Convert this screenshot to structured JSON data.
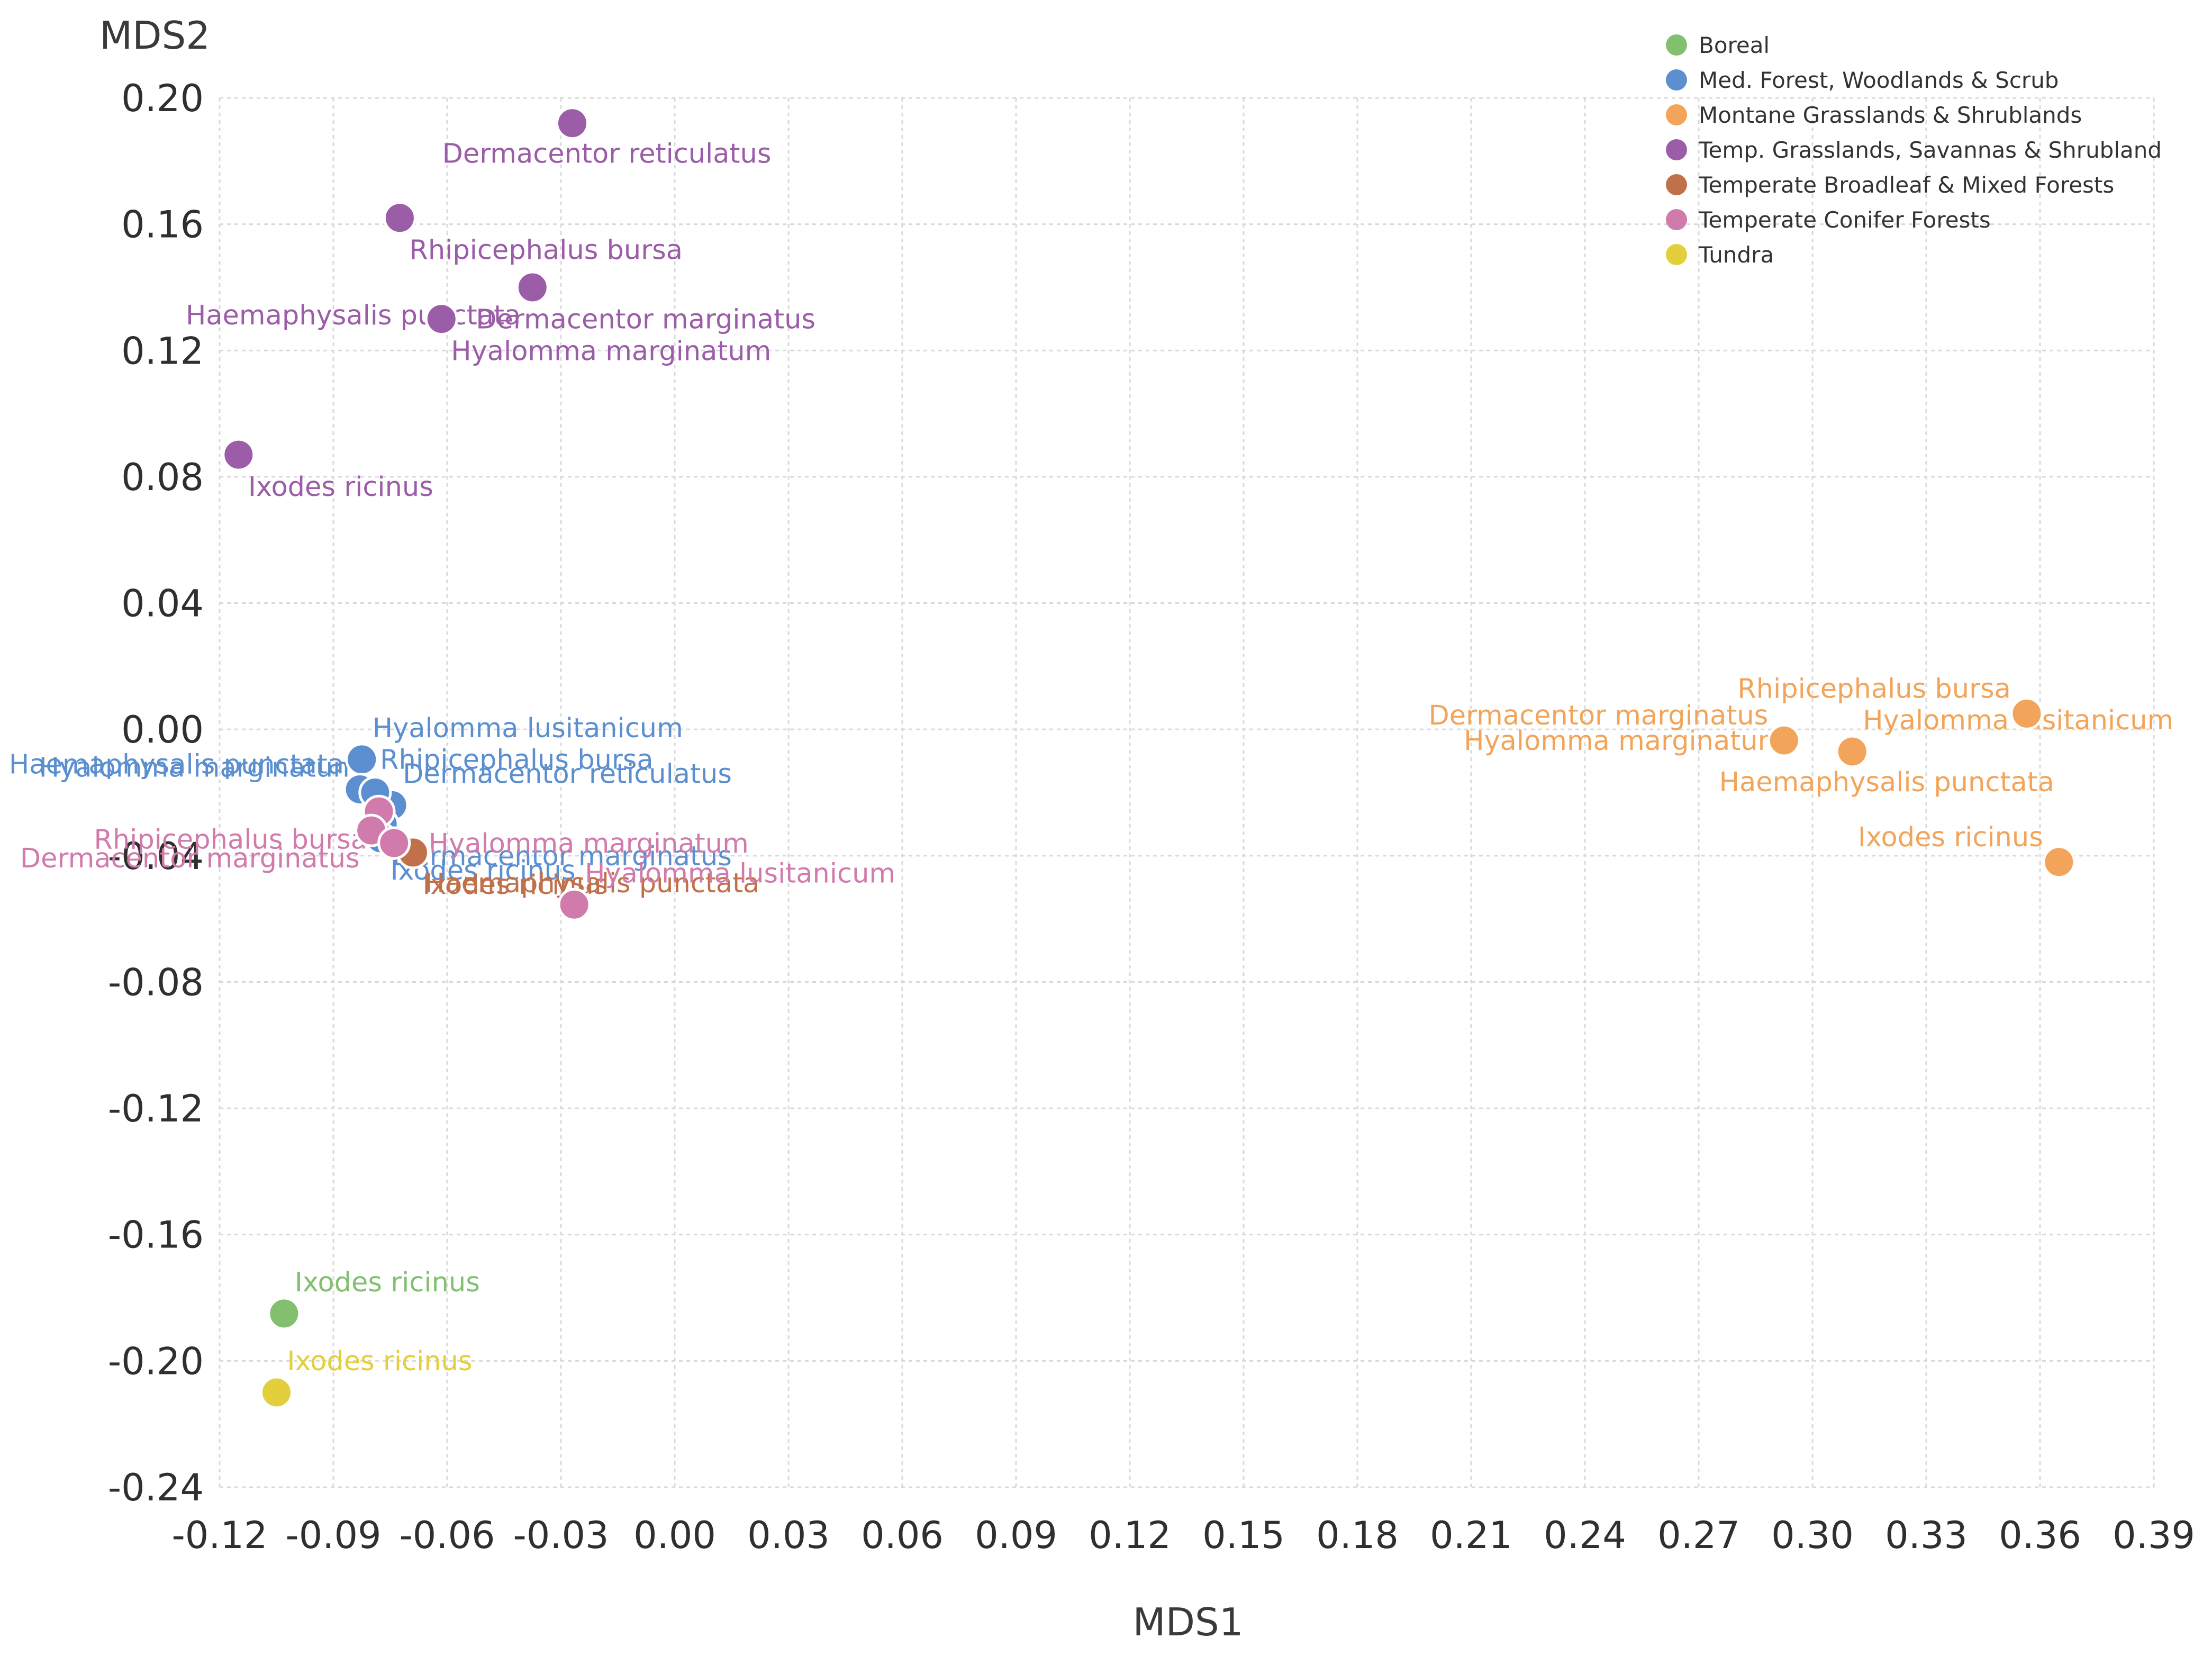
{
  "chart_data": {
    "type": "scatter",
    "title": "",
    "xlabel": "MDS1",
    "ylabel": "MDS2",
    "xlim": [
      -0.12,
      0.39
    ],
    "ylim": [
      -0.24,
      0.2
    ],
    "xticks": [
      -0.12,
      -0.09,
      -0.06,
      -0.03,
      0.0,
      0.03,
      0.06,
      0.09,
      0.12,
      0.15,
      0.18,
      0.21,
      0.24,
      0.27,
      0.3,
      0.33,
      0.36,
      0.39
    ],
    "xtick_labels": [
      "-0.12",
      "-0.09",
      "-0.06",
      "-0.03",
      "0.00",
      "0.03",
      "0.06",
      "0.09",
      "0.12",
      "0.15",
      "0.18",
      "0.21",
      "0.24",
      "0.27",
      "0.30",
      "0.33",
      "0.36",
      "0.39"
    ],
    "yticks": [
      0.2,
      0.16,
      0.12,
      0.08,
      0.04,
      0.0,
      -0.04,
      -0.08,
      -0.12,
      -0.16,
      -0.2,
      -0.24
    ],
    "ytick_labels": [
      "0.20",
      "0.16",
      "0.12",
      "0.08",
      "0.04",
      "0.00",
      "-0.04",
      "-0.08",
      "-0.12",
      "-0.16",
      "-0.20",
      "-0.24"
    ],
    "grid": true,
    "legend_position": "top-right",
    "series": [
      {
        "name": "Boreal",
        "color": "#82c070",
        "points": [
          {
            "x": -0.103,
            "y": -0.185,
            "label": "Ixodes ricinus",
            "label_pos": "upper-right"
          }
        ]
      },
      {
        "name": "Med. Forest, Woodlands & Scrub",
        "color": "#5b8fcf",
        "points": [
          {
            "x": -0.0825,
            "y": -0.0095,
            "label": "Hyalomma lusitanicum",
            "label_pos": "upper-right"
          },
          {
            "x": -0.0805,
            "y": -0.0195,
            "label": "Rhipicephalus bursa",
            "label_pos": "upper-right"
          },
          {
            "x": -0.0745,
            "y": -0.024,
            "label": "Dermacentor reticulatus",
            "label_pos": "upper-right"
          },
          {
            "x": -0.083,
            "y": -0.019,
            "label": "Haemaphysalis punctata",
            "label_pos": "upper-left"
          },
          {
            "x": -0.079,
            "y": -0.02,
            "label": "Hyalomma marginatum",
            "label_pos": "upper-left"
          },
          {
            "x": -0.077,
            "y": -0.03,
            "label": "Dermacentor marginatus",
            "label_pos": "lower-right"
          },
          {
            "x": -0.0775,
            "y": -0.0345,
            "label": "Ixodes ricinus",
            "label_pos": "lower-right"
          }
        ]
      },
      {
        "name": "Montane Grasslands & Shrublands",
        "color": "#f2a55a",
        "points": [
          {
            "x": 0.3565,
            "y": 0.005,
            "label": "Rhipicephalus bursa",
            "label_pos": "upper-left"
          },
          {
            "x": 0.3105,
            "y": -0.007,
            "label": "Hyalomma lusitanicum",
            "label_pos": "upper-right"
          },
          {
            "x": 0.2925,
            "y": -0.0035,
            "label": "Dermacentor marginatus",
            "label_pos": "upper-left"
          },
          {
            "x": 0.3105,
            "y": -0.007,
            "label": "Haemaphysalis punctata",
            "label_pos": "lower"
          },
          {
            "x": 0.2925,
            "y": -0.0035,
            "label": "Hyalomma marginatum",
            "label_pos": "left"
          },
          {
            "x": 0.365,
            "y": -0.042,
            "label": "Ixodes ricinus",
            "label_pos": "upper-left"
          }
        ]
      },
      {
        "name": "Temp. Grasslands, Savannas & Shrubland",
        "color": "#9b5ca8",
        "points": [
          {
            "x": -0.027,
            "y": 0.192,
            "label": "Dermacentor reticulatus",
            "label_pos": "lower"
          },
          {
            "x": -0.0725,
            "y": 0.162,
            "label": "Rhipicephalus bursa",
            "label_pos": "lower-right"
          },
          {
            "x": -0.0375,
            "y": 0.14,
            "label": "Haemaphysalis punctata",
            "label_pos": "lower-left"
          },
          {
            "x": -0.0615,
            "y": 0.13,
            "label": "Dermacentor marginatus",
            "label_pos": "right"
          },
          {
            "x": -0.0615,
            "y": 0.13,
            "label": "Hyalomma marginatum",
            "label_pos": "lower-right"
          },
          {
            "x": -0.115,
            "y": 0.087,
            "label": "Ixodes ricinus",
            "label_pos": "lower-right"
          }
        ]
      },
      {
        "name": "Temperate Broadleaf & Mixed Forests",
        "color": "#c0714a",
        "points": [
          {
            "x": -0.0685,
            "y": -0.0385,
            "label": "Haemaphysalis punctata",
            "label_pos": "lower-right"
          },
          {
            "x": -0.069,
            "y": -0.039,
            "label": "Ixodes ricinus",
            "label_pos": "lower-right"
          }
        ]
      },
      {
        "name": "Temperate Conifer Forests",
        "color": "#d17bad",
        "points": [
          {
            "x": -0.078,
            "y": -0.026,
            "label": "Rhipicephalus bursa",
            "label_pos": "lower-left"
          },
          {
            "x": -0.08,
            "y": -0.032,
            "label": "Dermacentor marginatus",
            "label_pos": "lower-left"
          },
          {
            "x": -0.074,
            "y": -0.036,
            "label": "Hyalomma marginatum",
            "label_pos": "right"
          },
          {
            "x": -0.0265,
            "y": -0.0555,
            "label": "Hyalomma lusitanicum",
            "label_pos": "upper-right"
          }
        ]
      },
      {
        "name": "Tundra",
        "color": "#e3cf3c",
        "points": [
          {
            "x": -0.105,
            "y": -0.21,
            "label": "Ixodes ricinus",
            "label_pos": "upper-right"
          }
        ]
      }
    ]
  }
}
